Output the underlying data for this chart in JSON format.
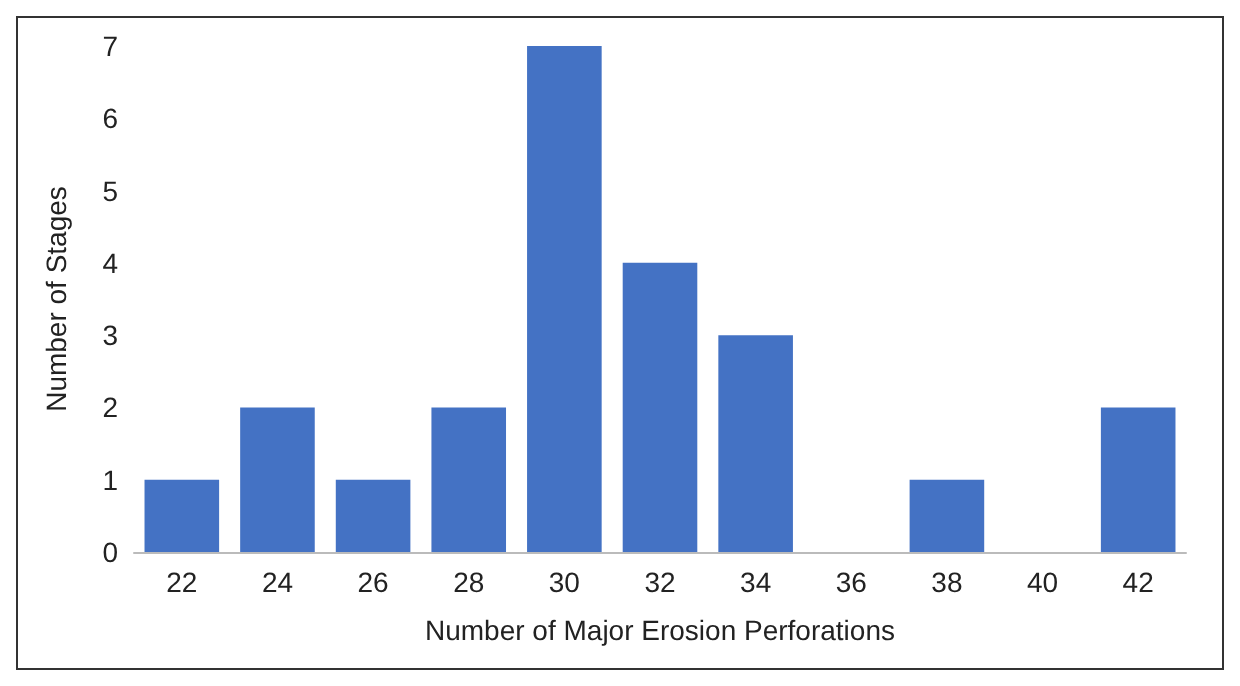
{
  "chart_data": {
    "type": "bar",
    "xlabel": "Number of Major Erosion Perforations",
    "ylabel": "Number of Stages",
    "categories": [
      "22",
      "24",
      "26",
      "28",
      "30",
      "32",
      "34",
      "36",
      "38",
      "40",
      "42"
    ],
    "values": [
      1,
      2,
      1,
      2,
      7,
      4,
      3,
      0,
      1,
      0,
      2
    ],
    "color": "#4472c4",
    "ylim": [
      0,
      7
    ],
    "yticks": [
      0,
      1,
      2,
      3,
      4,
      5,
      6,
      7
    ],
    "grid": false
  }
}
